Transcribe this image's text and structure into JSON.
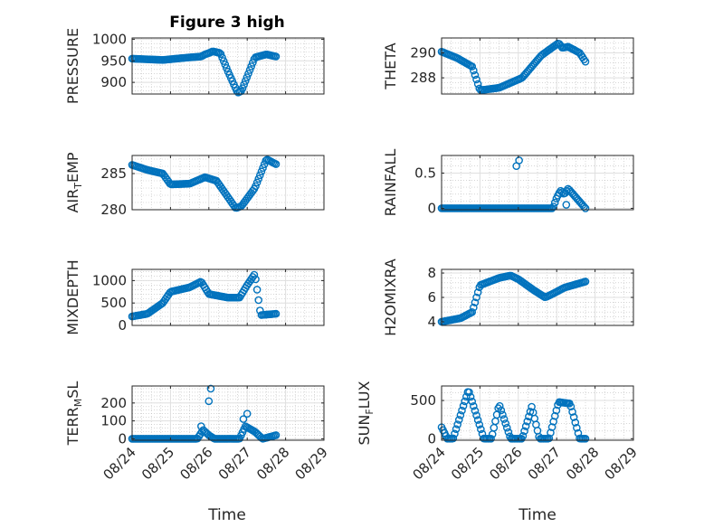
{
  "figure": {
    "title": "Figure 3 high",
    "xlabel": "Time"
  },
  "colors": {
    "marker": "#0072BD",
    "axis": "#262626",
    "grid": "#dfdfdf",
    "minor_grid": "#bdbdbd"
  },
  "chart_data": [
    {
      "type": "scatter",
      "ylabel_parts": [
        "PRESSURE"
      ],
      "x_range": [
        0,
        5
      ],
      "x_ticks": [
        0,
        1,
        2,
        3,
        4,
        5
      ],
      "x_tick_labels": [],
      "ylim": [
        873,
        1003
      ],
      "y_ticks": [
        900,
        950,
        1000
      ],
      "y_tick_labels": [
        "900",
        "950",
        "1000"
      ],
      "x_anchors": [
        0,
        0.8,
        1.5,
        1.8,
        1.9,
        2.0,
        2.1,
        2.3,
        2.5,
        2.75,
        2.85,
        3.2,
        3.5,
        3.75
      ],
      "y_anchors": [
        955,
        952,
        958,
        960,
        965,
        968,
        972,
        968,
        925,
        876,
        880,
        958,
        965,
        960
      ]
    },
    {
      "type": "scatter",
      "ylabel_parts": [
        "THETA"
      ],
      "x_range": [
        0,
        5
      ],
      "x_ticks": [
        0,
        1,
        2,
        3,
        4,
        5
      ],
      "x_tick_labels": [],
      "ylim": [
        286.7,
        291.2
      ],
      "y_ticks": [
        288,
        290
      ],
      "y_tick_labels": [
        "288",
        "290"
      ],
      "x_anchors": [
        0,
        0.4,
        0.8,
        1.0,
        1.5,
        1.8,
        2.1,
        2.6,
        3.05,
        3.15,
        3.3,
        3.6,
        3.75
      ],
      "y_anchors": [
        290.1,
        289.6,
        288.9,
        287.0,
        287.2,
        287.6,
        288.0,
        289.8,
        290.8,
        290.4,
        290.5,
        290.0,
        289.3
      ]
    },
    {
      "type": "scatter",
      "ylabel_parts": [
        "AIR",
        "T",
        "EMP"
      ],
      "x_range": [
        0,
        5
      ],
      "x_ticks": [
        0,
        1,
        2,
        3,
        4,
        5
      ],
      "x_tick_labels": [],
      "ylim": [
        280,
        287.5
      ],
      "y_ticks": [
        280,
        285
      ],
      "y_tick_labels": [
        "280",
        "285"
      ],
      "x_anchors": [
        0,
        0.4,
        0.8,
        1.0,
        1.5,
        1.9,
        2.2,
        2.7,
        2.85,
        3.2,
        3.5,
        3.75
      ],
      "y_anchors": [
        286.2,
        285.5,
        285.0,
        283.5,
        283.6,
        284.5,
        284.0,
        280.2,
        280.5,
        283.0,
        287.0,
        286.3
      ]
    },
    {
      "type": "scatter",
      "ylabel_parts": [
        "RAINFALL"
      ],
      "x_range": [
        0,
        5
      ],
      "x_ticks": [
        0,
        1,
        2,
        3,
        4,
        5
      ],
      "x_tick_labels": [],
      "ylim": [
        -0.02,
        0.75
      ],
      "y_ticks": [
        0,
        0.5
      ],
      "y_tick_labels": [
        "0",
        "0.5"
      ],
      "x_anchors": [
        0,
        2.0,
        2.9,
        3.0,
        3.1,
        3.2,
        3.3,
        3.75
      ],
      "y_anchors": [
        0,
        0,
        0,
        0.15,
        0.25,
        0.2,
        0.28,
        0
      ],
      "extra_points": [
        [
          1.95,
          0.6
        ],
        [
          2.02,
          0.68
        ],
        [
          3.25,
          0.05
        ]
      ]
    },
    {
      "type": "scatter",
      "ylabel_parts": [
        "MIXDEPTH"
      ],
      "x_range": [
        0,
        5
      ],
      "x_ticks": [
        0,
        1,
        2,
        3,
        4,
        5
      ],
      "x_tick_labels": [],
      "ylim": [
        0,
        1250
      ],
      "y_ticks": [
        0,
        500,
        1000
      ],
      "y_tick_labels": [
        "0",
        "500",
        "1000"
      ],
      "x_anchors": [
        0,
        0.4,
        0.8,
        1.0,
        1.5,
        1.8,
        2.0,
        2.5,
        2.8,
        3.0,
        3.2,
        3.35,
        3.75
      ],
      "y_anchors": [
        200,
        260,
        500,
        750,
        850,
        980,
        700,
        620,
        620,
        900,
        1150,
        230,
        260
      ]
    },
    {
      "type": "scatter",
      "ylabel_parts": [
        "H2OMIXRA"
      ],
      "x_range": [
        0,
        5
      ],
      "x_ticks": [
        0,
        1,
        2,
        3,
        4,
        5
      ],
      "x_tick_labels": [],
      "ylim": [
        3.7,
        8.3
      ],
      "y_ticks": [
        4,
        6,
        8
      ],
      "y_tick_labels": [
        "4",
        "6",
        "8"
      ],
      "x_anchors": [
        0,
        0.5,
        0.8,
        1.0,
        1.5,
        1.8,
        2.0,
        2.4,
        2.7,
        2.9,
        3.2,
        3.75
      ],
      "y_anchors": [
        4.0,
        4.3,
        4.8,
        7.0,
        7.6,
        7.8,
        7.5,
        6.6,
        6.0,
        6.3,
        6.8,
        7.3
      ]
    },
    {
      "type": "scatter",
      "ylabel_parts": [
        "TERR",
        "M",
        "SL"
      ],
      "x_range": [
        0,
        5
      ],
      "x_ticks": [
        0,
        1,
        2,
        3,
        4,
        5
      ],
      "x_tick_labels": [
        "08/24",
        "08/25",
        "08/26",
        "08/27",
        "08/28",
        "08/29"
      ],
      "ylim": [
        -8,
        295
      ],
      "y_ticks": [
        0,
        100,
        200
      ],
      "y_tick_labels": [
        "0",
        "100",
        "200"
      ],
      "x_anchors": [
        0,
        1.7,
        1.85,
        2.0,
        2.15,
        2.8,
        2.95,
        3.2,
        3.4,
        3.75
      ],
      "y_anchors": [
        0,
        0,
        50,
        20,
        0,
        0,
        70,
        40,
        0,
        20
      ],
      "extra_points": [
        [
          2.05,
          280
        ],
        [
          2.0,
          210
        ],
        [
          1.8,
          70
        ],
        [
          3.0,
          140
        ],
        [
          2.9,
          110
        ]
      ]
    },
    {
      "type": "scatter",
      "ylabel_parts": [
        "SUN",
        "F",
        "LUX"
      ],
      "x_range": [
        0,
        5
      ],
      "x_ticks": [
        0,
        1,
        2,
        3,
        4,
        5
      ],
      "x_tick_labels": [
        "08/24",
        "08/25",
        "08/26",
        "08/27",
        "08/28",
        "08/29"
      ],
      "ylim": [
        -20,
        690
      ],
      "y_ticks": [
        0,
        500
      ],
      "y_tick_labels": [
        "0",
        "500"
      ],
      "x_anchors": [
        0,
        0.15,
        0.3,
        0.7,
        1.1,
        1.3,
        1.5,
        1.8,
        2.1,
        2.35,
        2.55,
        2.8,
        3.05,
        3.35,
        3.6,
        3.75
      ],
      "y_anchors": [
        150,
        0,
        0,
        640,
        0,
        0,
        450,
        0,
        0,
        420,
        0,
        0,
        480,
        460,
        0,
        0
      ]
    }
  ]
}
